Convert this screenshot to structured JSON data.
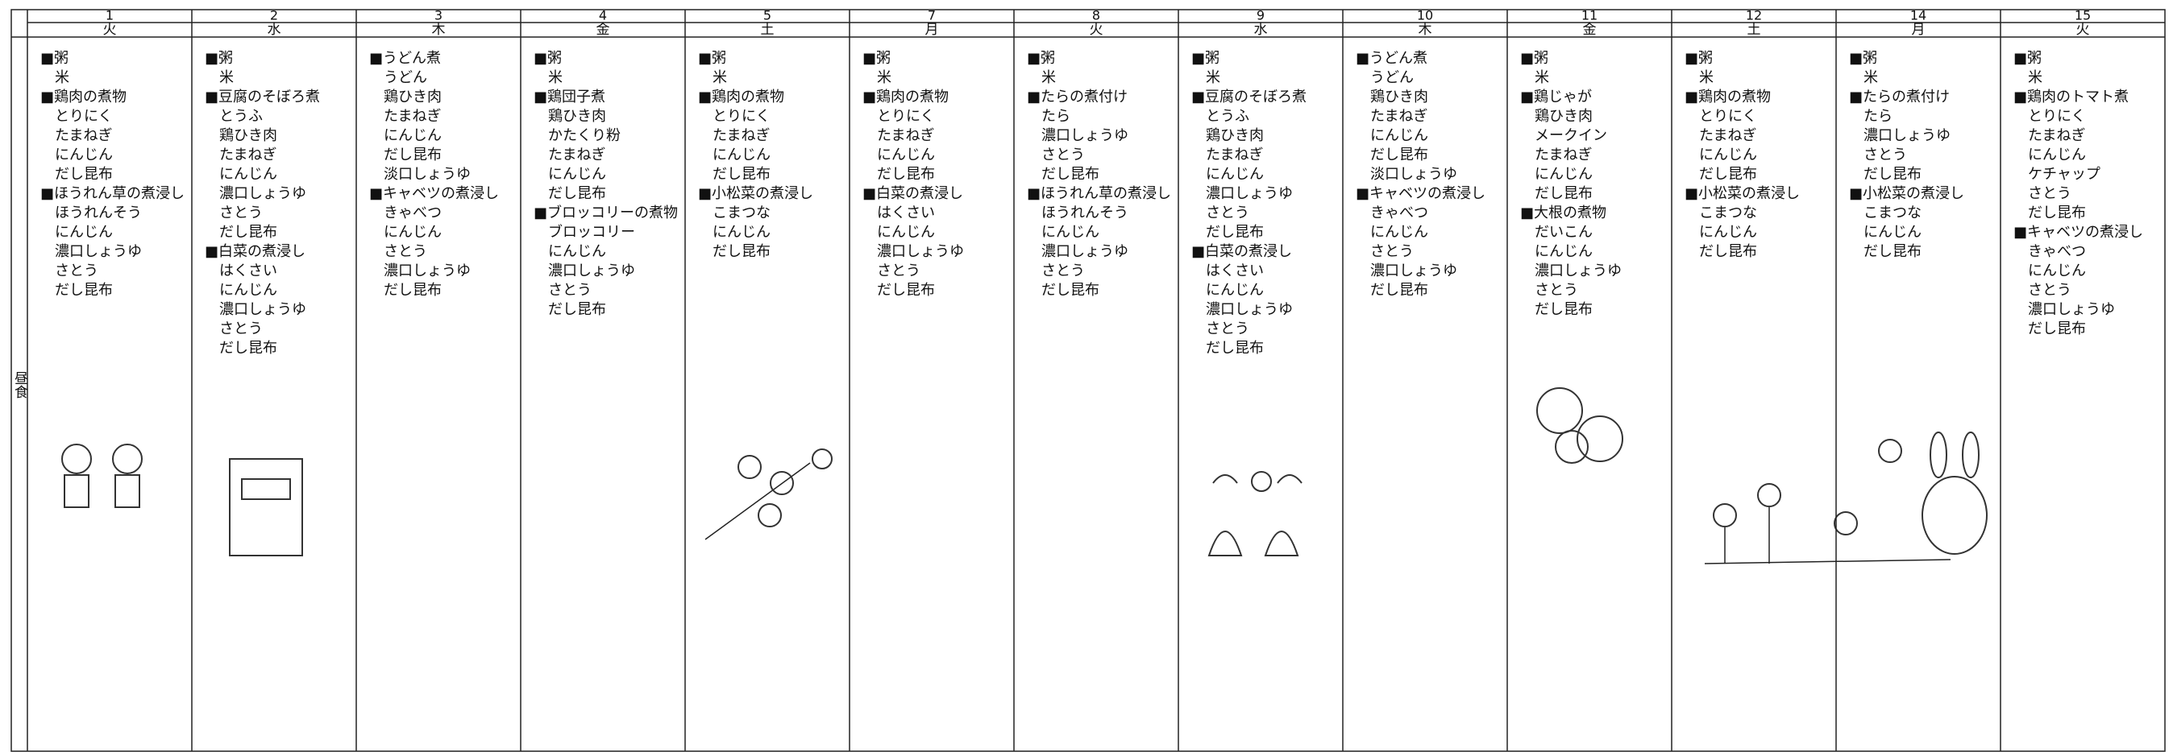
{
  "row_label": "昼食",
  "days": [
    {
      "date": "1",
      "weekday": "火",
      "items": [
        "■粥",
        "米",
        "■鶏肉の煮物",
        "とりにく",
        "たまねぎ",
        "にんじん",
        "だし昆布",
        "■ほうれん草の煮浸し",
        "ほうれんそう",
        "にんじん",
        "濃口しょうゆ",
        "さとう",
        "だし昆布"
      ]
    },
    {
      "date": "2",
      "weekday": "水",
      "items": [
        "■粥",
        "米",
        "■豆腐のそぼろ煮",
        "とうふ",
        "鶏ひき肉",
        "たまねぎ",
        "にんじん",
        "濃口しょうゆ",
        "さとう",
        "だし昆布",
        "■白菜の煮浸し",
        "はくさい",
        "にんじん",
        "濃口しょうゆ",
        "さとう",
        "だし昆布"
      ]
    },
    {
      "date": "3",
      "weekday": "木",
      "items": [
        "■うどん煮",
        "うどん",
        "鶏ひき肉",
        "たまねぎ",
        "にんじん",
        "だし昆布",
        "淡口しょうゆ",
        "■キャベツの煮浸し",
        "きゃべつ",
        "にんじん",
        "さとう",
        "濃口しょうゆ",
        "だし昆布"
      ]
    },
    {
      "date": "4",
      "weekday": "金",
      "items": [
        "■粥",
        "米",
        "■鶏団子煮",
        "鶏ひき肉",
        "かたくり粉",
        "たまねぎ",
        "にんじん",
        "だし昆布",
        "■ブロッコリーの煮物",
        "ブロッコリー",
        "にんじん",
        "濃口しょうゆ",
        "さとう",
        "だし昆布"
      ]
    },
    {
      "date": "5",
      "weekday": "土",
      "items": [
        "■粥",
        "米",
        "■鶏肉の煮物",
        "とりにく",
        "たまねぎ",
        "にんじん",
        "だし昆布",
        "■小松菜の煮浸し",
        "こまつな",
        "にんじん",
        "だし昆布"
      ]
    },
    {
      "date": "7",
      "weekday": "月",
      "items": [
        "■粥",
        "米",
        "■鶏肉の煮物",
        "とりにく",
        "たまねぎ",
        "にんじん",
        "だし昆布",
        "■白菜の煮浸し",
        "はくさい",
        "にんじん",
        "濃口しょうゆ",
        "さとう",
        "だし昆布"
      ]
    },
    {
      "date": "8",
      "weekday": "火",
      "items": [
        "■粥",
        "米",
        "■たらの煮付け",
        "たら",
        "濃口しょうゆ",
        "さとう",
        "だし昆布",
        "■ほうれん草の煮浸し",
        "ほうれんそう",
        "にんじん",
        "濃口しょうゆ",
        "さとう",
        "だし昆布"
      ]
    },
    {
      "date": "9",
      "weekday": "水",
      "items": [
        "■粥",
        "米",
        "■豆腐のそぼろ煮",
        "とうふ",
        "鶏ひき肉",
        "たまねぎ",
        "にんじん",
        "濃口しょうゆ",
        "さとう",
        "だし昆布",
        "■白菜の煮浸し",
        "はくさい",
        "にんじん",
        "濃口しょうゆ",
        "さとう",
        "だし昆布"
      ]
    },
    {
      "date": "10",
      "weekday": "木",
      "items": [
        "■うどん煮",
        "うどん",
        "鶏ひき肉",
        "たまねぎ",
        "にんじん",
        "だし昆布",
        "淡口しょうゆ",
        "■キャベツの煮浸し",
        "きゃべつ",
        "にんじん",
        "さとう",
        "濃口しょうゆ",
        "だし昆布"
      ]
    },
    {
      "date": "11",
      "weekday": "金",
      "items": [
        "■粥",
        "米",
        "■鶏じゃが",
        "鶏ひき肉",
        "メークイン",
        "たまねぎ",
        "にんじん",
        "だし昆布",
        "■大根の煮物",
        "だいこん",
        "にんじん",
        "濃口しょうゆ",
        "さとう",
        "だし昆布"
      ]
    },
    {
      "date": "12",
      "weekday": "土",
      "items": [
        "■粥",
        "米",
        "■鶏肉の煮物",
        "とりにく",
        "たまねぎ",
        "にんじん",
        "だし昆布",
        "■小松菜の煮浸し",
        "こまつな",
        "にんじん",
        "だし昆布"
      ]
    },
    {
      "date": "14",
      "weekday": "月",
      "items": [
        "■粥",
        "米",
        "■たらの煮付け",
        "たら",
        "濃口しょうゆ",
        "さとう",
        "だし昆布",
        "■小松菜の煮浸し",
        "こまつな",
        "にんじん",
        "だし昆布"
      ]
    },
    {
      "date": "15",
      "weekday": "火",
      "items": [
        "■粥",
        "米",
        "■鶏肉のトマト煮",
        "とりにく",
        "たまねぎ",
        "にんじん",
        "ケチャップ",
        "さとう",
        "だし昆布",
        "■キャベツの煮浸し",
        "きゃべつ",
        "にんじん",
        "さとう",
        "濃口しょうゆ",
        "だし昆布"
      ]
    }
  ]
}
